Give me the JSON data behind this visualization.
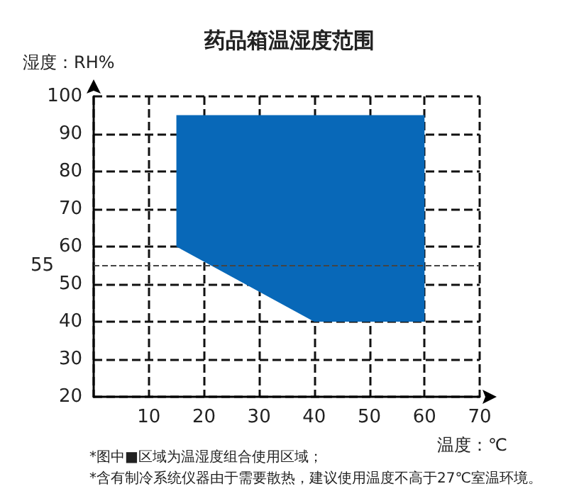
{
  "chart_data": {
    "type": "area",
    "title": "药品箱温湿度范围",
    "xlabel": "温度：℃",
    "ylabel": "湿度：RH%",
    "x": [
      15,
      15,
      60,
      60,
      40
    ],
    "series": [
      {
        "color": "#0868b8",
        "values": [
          60,
          95,
          95,
          40,
          40
        ]
      }
    ],
    "xlim": [
      0,
      70
    ],
    "xticks": [
      {
        "value": 0,
        "label": null
      },
      10,
      20,
      30,
      40,
      50,
      60,
      70
    ],
    "ylim": [
      20,
      100
    ],
    "yticks": [
      20,
      30,
      40,
      50,
      60,
      70,
      80,
      90,
      100
    ],
    "grid": true,
    "line_style": "dashed",
    "ref_lines": [
      {
        "axis": "y",
        "value": 55,
        "label": "55",
        "line_style": "dashed",
        "color": "#444444"
      }
    ],
    "annotations": [
      "*图中■区域为温湿度组合使用区域；",
      "*含有制冷系统仪器由于需要散热，建议使用温度不高于27℃室温环境。"
    ]
  }
}
